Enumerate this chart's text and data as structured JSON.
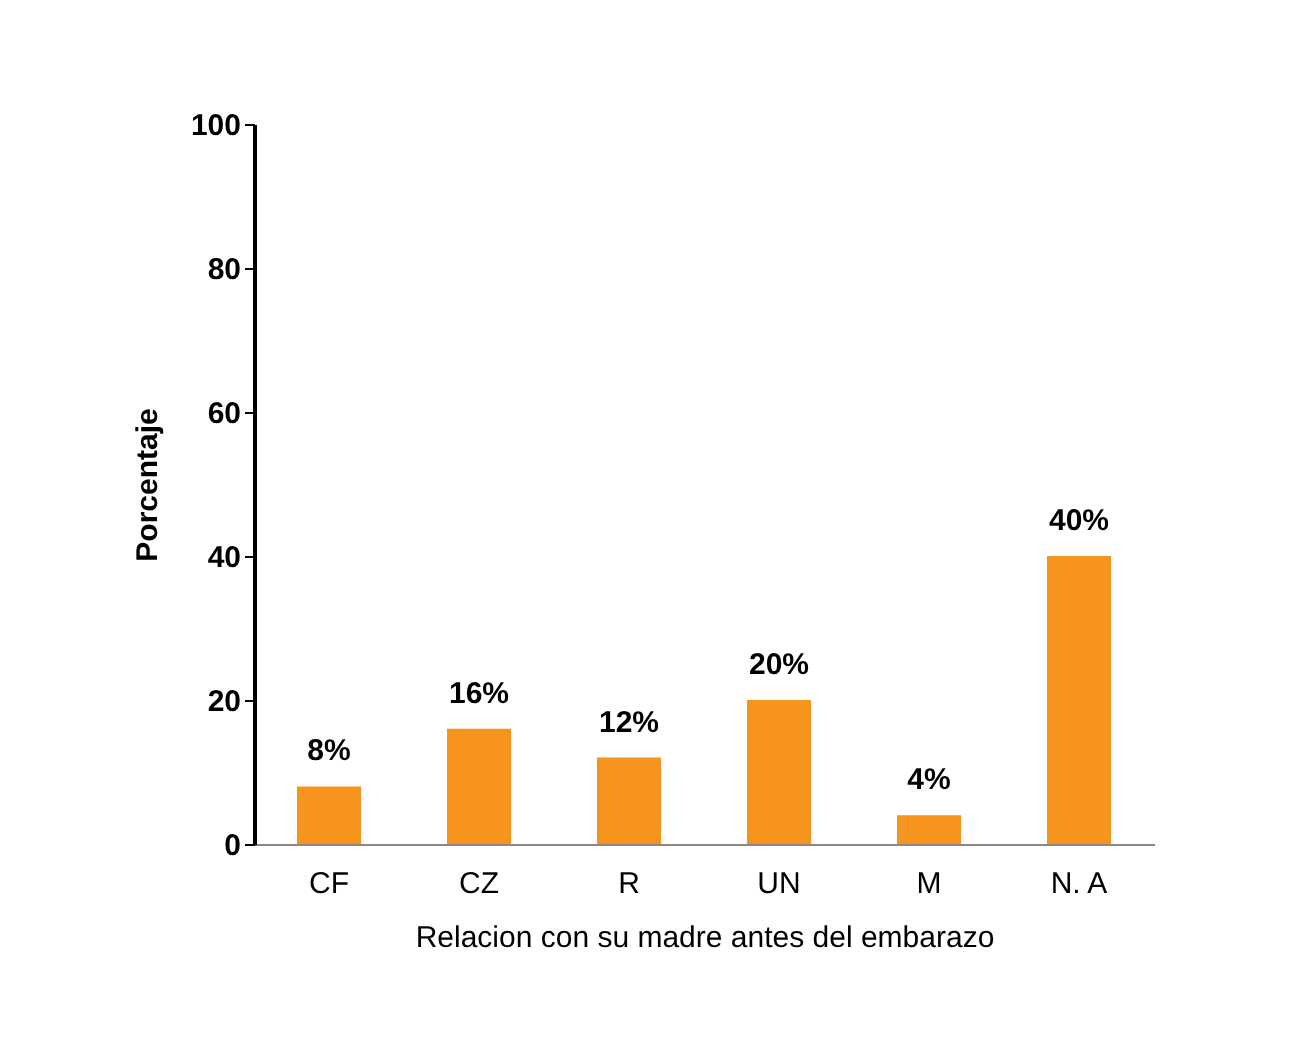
{
  "chart_data": {
    "type": "bar",
    "xlabel": "Relacion con su madre antes del embarazo",
    "ylabel": "Porcentaje",
    "categories": [
      "CF",
      "CZ",
      "R",
      "UN",
      "M",
      "N. A"
    ],
    "values": [
      8,
      16,
      12,
      20,
      4,
      40
    ],
    "value_labels": [
      "8%",
      "16%",
      "12%",
      "20%",
      "4%",
      "40%"
    ],
    "color": "#f7941d",
    "ylim": [
      0,
      100
    ],
    "yticks": [
      0,
      20,
      40,
      60,
      80,
      100
    ],
    "grid": false
  }
}
